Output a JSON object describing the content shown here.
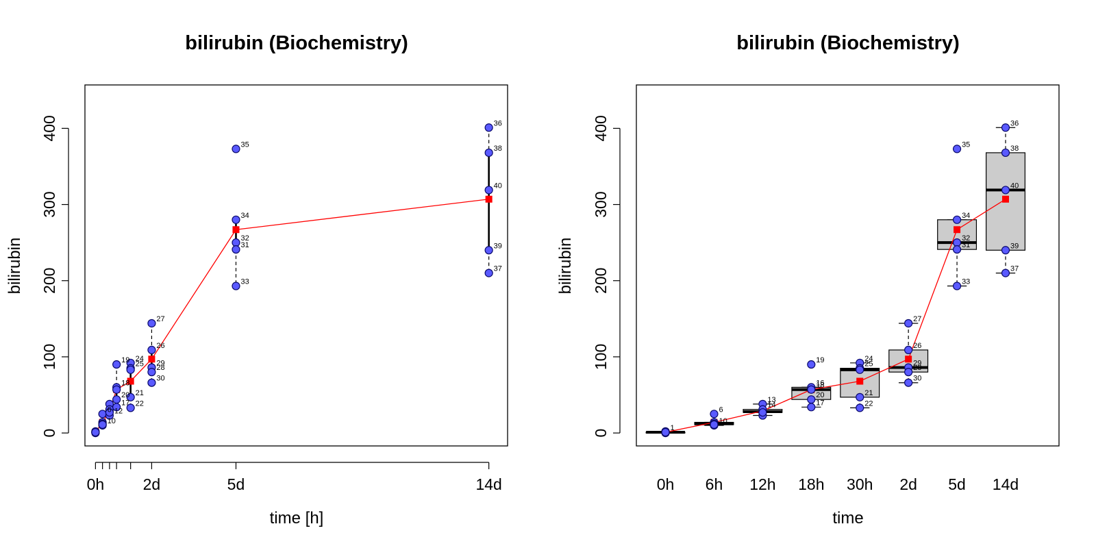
{
  "colors": {
    "point_fill": "#5a5aff",
    "point_stroke": "#0a0a6a",
    "mean": "#ff0000",
    "box_fill": "#cccccc"
  },
  "chart_data": [
    {
      "type": "scatter",
      "title": "bilirubin (Biochemistry)",
      "xlabel": "time [h]",
      "ylabel": "bilirubin",
      "xlim": [
        -9,
        352
      ],
      "ylim": [
        -17,
        457
      ],
      "x_ticks": [
        {
          "v": 0,
          "label": "0h"
        },
        {
          "v": 48,
          "label": "2d"
        },
        {
          "v": 120,
          "label": "5d"
        },
        {
          "v": 336,
          "label": "14d"
        }
      ],
      "x_minor_ticks": [
        6,
        12,
        18,
        30
      ],
      "y_ticks": [
        0,
        100,
        200,
        300,
        400
      ],
      "points": [
        {
          "x": 0,
          "y": 1,
          "label": ""
        },
        {
          "x": 0,
          "y": 1,
          "label": ""
        },
        {
          "x": 0,
          "y": 0,
          "label": ""
        },
        {
          "x": 0,
          "y": 2,
          "label": ""
        },
        {
          "x": 0,
          "y": 1,
          "label": ""
        },
        {
          "x": 6,
          "y": 25,
          "label": "6"
        },
        {
          "x": 6,
          "y": 14,
          "label": ""
        },
        {
          "x": 6,
          "y": 12,
          "label": ""
        },
        {
          "x": 6,
          "y": 10,
          "label": "10"
        },
        {
          "x": 6,
          "y": 11,
          "label": ""
        },
        {
          "x": 12,
          "y": 38,
          "label": ""
        },
        {
          "x": 12,
          "y": 28,
          "label": ""
        },
        {
          "x": 12,
          "y": 31,
          "label": ""
        },
        {
          "x": 12,
          "y": 23,
          "label": "12"
        },
        {
          "x": 12,
          "y": 27,
          "label": ""
        },
        {
          "x": 18,
          "y": 90,
          "label": "19"
        },
        {
          "x": 18,
          "y": 60,
          "label": "18"
        },
        {
          "x": 18,
          "y": 57,
          "label": ""
        },
        {
          "x": 18,
          "y": 44,
          "label": "20"
        },
        {
          "x": 18,
          "y": 34,
          "label": "17"
        },
        {
          "x": 30,
          "y": 92,
          "label": "24"
        },
        {
          "x": 30,
          "y": 85,
          "label": "25"
        },
        {
          "x": 30,
          "y": 83,
          "label": ""
        },
        {
          "x": 30,
          "y": 47,
          "label": "21"
        },
        {
          "x": 30,
          "y": 33,
          "label": "22"
        },
        {
          "x": 48,
          "y": 144,
          "label": "27"
        },
        {
          "x": 48,
          "y": 109,
          "label": "26"
        },
        {
          "x": 48,
          "y": 86,
          "label": "29"
        },
        {
          "x": 48,
          "y": 80,
          "label": "28"
        },
        {
          "x": 48,
          "y": 66,
          "label": "30"
        },
        {
          "x": 120,
          "y": 373,
          "label": "35"
        },
        {
          "x": 120,
          "y": 280,
          "label": "34"
        },
        {
          "x": 120,
          "y": 250,
          "label": "32"
        },
        {
          "x": 120,
          "y": 241,
          "label": "31"
        },
        {
          "x": 120,
          "y": 193,
          "label": "33"
        },
        {
          "x": 336,
          "y": 401,
          "label": "36"
        },
        {
          "x": 336,
          "y": 368,
          "label": "38"
        },
        {
          "x": 336,
          "y": 319,
          "label": "40"
        },
        {
          "x": 336,
          "y": 240,
          "label": "39"
        },
        {
          "x": 336,
          "y": 210,
          "label": "37"
        }
      ],
      "whiskers": [
        {
          "x": 0,
          "q1": 1,
          "median": 1,
          "q3": 1,
          "min": 0,
          "max": 2
        },
        {
          "x": 6,
          "q1": 11,
          "median": 12,
          "q3": 14,
          "min": 10,
          "max": 25
        },
        {
          "x": 12,
          "q1": 27,
          "median": 28,
          "q3": 31,
          "min": 23,
          "max": 38
        },
        {
          "x": 18,
          "q1": 44,
          "median": 57,
          "q3": 60,
          "min": 34,
          "max": 90
        },
        {
          "x": 30,
          "q1": 47,
          "median": 83,
          "q3": 85,
          "min": 33,
          "max": 92
        },
        {
          "x": 48,
          "q1": 80,
          "median": 86,
          "q3": 109,
          "min": 66,
          "max": 144
        },
        {
          "x": 120,
          "q1": 241,
          "median": 250,
          "q3": 280,
          "min": 193,
          "max": 280
        },
        {
          "x": 336,
          "q1": 240,
          "median": 319,
          "q3": 368,
          "min": 210,
          "max": 401
        }
      ],
      "mean_line": {
        "x": [
          0,
          6,
          12,
          18,
          30,
          48,
          120,
          336
        ],
        "y": [
          1,
          14,
          29,
          57,
          68,
          97,
          267,
          307
        ]
      }
    },
    {
      "type": "box",
      "title": "bilirubin (Biochemistry)",
      "xlabel": "time",
      "ylabel": "bilirubin",
      "xlim": [
        0.4,
        9.1
      ],
      "ylim": [
        -17,
        457
      ],
      "categories": [
        "0h",
        "6h",
        "12h",
        "18h",
        "30h",
        "2d",
        "5d",
        "14d"
      ],
      "y_ticks": [
        0,
        100,
        200,
        300,
        400
      ],
      "boxes": [
        {
          "q1": 1,
          "median": 1,
          "q3": 1,
          "min": 0,
          "max": 2
        },
        {
          "q1": 11,
          "median": 12,
          "q3": 14,
          "min": 10,
          "max": 14
        },
        {
          "q1": 27,
          "median": 28,
          "q3": 31,
          "min": 23,
          "max": 38
        },
        {
          "q1": 44,
          "median": 57,
          "q3": 60,
          "min": 34,
          "max": 60
        },
        {
          "q1": 47,
          "median": 83,
          "q3": 85,
          "min": 33,
          "max": 92
        },
        {
          "q1": 80,
          "median": 86,
          "q3": 109,
          "min": 66,
          "max": 144
        },
        {
          "q1": 241,
          "median": 250,
          "q3": 280,
          "min": 193,
          "max": 280
        },
        {
          "q1": 240,
          "median": 319,
          "q3": 368,
          "min": 210,
          "max": 401
        }
      ],
      "points": [
        {
          "c": 1,
          "y": 1,
          "label": "1"
        },
        {
          "c": 1,
          "y": 1,
          "label": ""
        },
        {
          "c": 1,
          "y": 0,
          "label": ""
        },
        {
          "c": 1,
          "y": 2,
          "label": ""
        },
        {
          "c": 1,
          "y": 1,
          "label": ""
        },
        {
          "c": 2,
          "y": 25,
          "label": "6"
        },
        {
          "c": 2,
          "y": 14,
          "label": ""
        },
        {
          "c": 2,
          "y": 12,
          "label": ""
        },
        {
          "c": 2,
          "y": 10,
          "label": "10"
        },
        {
          "c": 2,
          "y": 11,
          "label": ""
        },
        {
          "c": 3,
          "y": 38,
          "label": "13"
        },
        {
          "c": 3,
          "y": 28,
          "label": ""
        },
        {
          "c": 3,
          "y": 31,
          "label": "14"
        },
        {
          "c": 3,
          "y": 23,
          "label": ""
        },
        {
          "c": 3,
          "y": 27,
          "label": ""
        },
        {
          "c": 4,
          "y": 90,
          "label": "19"
        },
        {
          "c": 4,
          "y": 60,
          "label": "16"
        },
        {
          "c": 4,
          "y": 57,
          "label": "18"
        },
        {
          "c": 4,
          "y": 44,
          "label": "20"
        },
        {
          "c": 4,
          "y": 34,
          "label": "17"
        },
        {
          "c": 5,
          "y": 92,
          "label": "24"
        },
        {
          "c": 5,
          "y": 85,
          "label": "25"
        },
        {
          "c": 5,
          "y": 83,
          "label": ""
        },
        {
          "c": 5,
          "y": 47,
          "label": "21"
        },
        {
          "c": 5,
          "y": 33,
          "label": "22"
        },
        {
          "c": 6,
          "y": 144,
          "label": "27"
        },
        {
          "c": 6,
          "y": 109,
          "label": "26"
        },
        {
          "c": 6,
          "y": 86,
          "label": "29"
        },
        {
          "c": 6,
          "y": 80,
          "label": "28"
        },
        {
          "c": 6,
          "y": 66,
          "label": "30"
        },
        {
          "c": 7,
          "y": 373,
          "label": "35"
        },
        {
          "c": 7,
          "y": 280,
          "label": "34"
        },
        {
          "c": 7,
          "y": 250,
          "label": "32"
        },
        {
          "c": 7,
          "y": 241,
          "label": "31"
        },
        {
          "c": 7,
          "y": 193,
          "label": "33"
        },
        {
          "c": 8,
          "y": 401,
          "label": "36"
        },
        {
          "c": 8,
          "y": 368,
          "label": "38"
        },
        {
          "c": 8,
          "y": 319,
          "label": "40"
        },
        {
          "c": 8,
          "y": 240,
          "label": "39"
        },
        {
          "c": 8,
          "y": 210,
          "label": "37"
        }
      ],
      "mean_line": {
        "c": [
          1,
          2,
          3,
          4,
          5,
          6,
          7,
          8
        ],
        "y": [
          1,
          14,
          29,
          57,
          68,
          97,
          267,
          307
        ]
      }
    }
  ]
}
